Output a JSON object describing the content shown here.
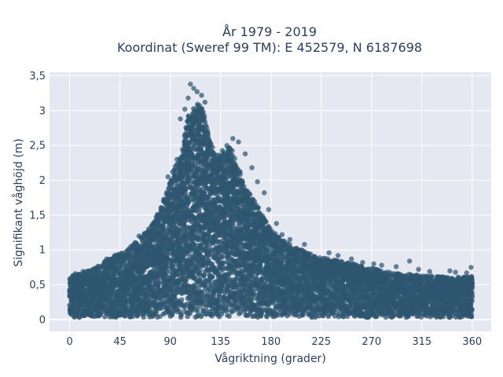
{
  "chart_data": {
    "type": "scatter",
    "title_lines": [
      "År 1979 - 2019",
      "Koordinat (Sweref 99 TM): E 452579, N 6187698"
    ],
    "xlabel": "Vågriktning (grader)",
    "ylabel": "Signifikant våghöjd (m)",
    "xlim": [
      -18,
      377
    ],
    "ylim": [
      -0.17,
      3.55
    ],
    "x_ticks": [
      {
        "value": 0,
        "label": "0"
      },
      {
        "value": 45,
        "label": "45"
      },
      {
        "value": 90,
        "label": "90"
      },
      {
        "value": 135,
        "label": "135"
      },
      {
        "value": 180,
        "label": "180"
      },
      {
        "value": 225,
        "label": "225"
      },
      {
        "value": 270,
        "label": "270"
      },
      {
        "value": 315,
        "label": "315"
      },
      {
        "value": 360,
        "label": "360"
      }
    ],
    "y_ticks": [
      {
        "value": 0,
        "label": "0"
      },
      {
        "value": 0.5,
        "label": "0,5"
      },
      {
        "value": 1,
        "label": "1"
      },
      {
        "value": 1.5,
        "label": "1,5"
      },
      {
        "value": 2,
        "label": "2"
      },
      {
        "value": 2.5,
        "label": "2,5"
      },
      {
        "value": 3,
        "label": "3"
      },
      {
        "value": 3.5,
        "label": "3,5"
      }
    ],
    "grid": true,
    "legend": "none",
    "colors": {
      "marker": "#2f5670",
      "plot_background": "#e5e8f0",
      "grid": "#ffffff",
      "text": "#2a3f5f"
    },
    "series": [
      {
        "envelope": [
          [
            0,
            0.62
          ],
          [
            10,
            0.66
          ],
          [
            20,
            0.72
          ],
          [
            30,
            0.82
          ],
          [
            40,
            0.92
          ],
          [
            50,
            0.98
          ],
          [
            60,
            1.12
          ],
          [
            70,
            1.28
          ],
          [
            80,
            1.55
          ],
          [
            90,
            2.0
          ],
          [
            100,
            2.4
          ],
          [
            105,
            2.85
          ],
          [
            110,
            3.05
          ],
          [
            115,
            3.15
          ],
          [
            120,
            2.95
          ],
          [
            125,
            2.6
          ],
          [
            130,
            2.35
          ],
          [
            140,
            2.5
          ],
          [
            145,
            2.45
          ],
          [
            150,
            2.2
          ],
          [
            160,
            1.85
          ],
          [
            170,
            1.55
          ],
          [
            180,
            1.3
          ],
          [
            190,
            1.15
          ],
          [
            200,
            1.05
          ],
          [
            210,
            0.98
          ],
          [
            220,
            0.92
          ],
          [
            230,
            0.88
          ],
          [
            240,
            0.85
          ],
          [
            250,
            0.82
          ],
          [
            260,
            0.78
          ],
          [
            270,
            0.74
          ],
          [
            280,
            0.7
          ],
          [
            290,
            0.68
          ],
          [
            300,
            0.66
          ],
          [
            310,
            0.64
          ],
          [
            320,
            0.63
          ],
          [
            330,
            0.62
          ],
          [
            340,
            0.61
          ],
          [
            350,
            0.61
          ],
          [
            360,
            0.62
          ]
        ],
        "outliers": [
          [
            108,
            3.38
          ],
          [
            111,
            3.32
          ],
          [
            114,
            3.27
          ],
          [
            118,
            3.22
          ],
          [
            106,
            3.18
          ],
          [
            121,
            3.12
          ],
          [
            103,
            3.02
          ],
          [
            99,
            2.88
          ],
          [
            146,
            2.6
          ],
          [
            151,
            2.55
          ],
          [
            157,
            2.38
          ],
          [
            142,
            2.42
          ],
          [
            163,
            2.18
          ],
          [
            168,
            1.98
          ],
          [
            174,
            1.82
          ],
          [
            178,
            1.58
          ],
          [
            185,
            1.38
          ],
          [
            190,
            1.22
          ],
          [
            197,
            1.15
          ],
          [
            203,
            1.02
          ],
          [
            210,
            1.08
          ],
          [
            232,
            0.96
          ],
          [
            240,
            0.92
          ],
          [
            252,
            0.87
          ],
          [
            262,
            0.82
          ],
          [
            272,
            0.8
          ],
          [
            279,
            0.78
          ],
          [
            292,
            0.76
          ],
          [
            304,
            0.84
          ],
          [
            312,
            0.72
          ],
          [
            322,
            0.69
          ],
          [
            340,
            0.7
          ],
          [
            345,
            0.68
          ],
          [
            355,
            0.67
          ],
          [
            359,
            0.75
          ],
          [
            5,
            0.66
          ],
          [
            12,
            0.69
          ],
          [
            26,
            0.76
          ],
          [
            33,
            0.87
          ],
          [
            42,
            0.9
          ],
          [
            47,
            0.95
          ],
          [
            52,
            0.99
          ],
          [
            62,
            1.2
          ],
          [
            74,
            1.36
          ],
          [
            83,
            1.52
          ],
          [
            88,
            2.05
          ],
          [
            92,
            2.12
          ],
          [
            96,
            2.3
          ],
          [
            132,
            2.1
          ],
          [
            138,
            2.3
          ]
        ]
      }
    ]
  }
}
